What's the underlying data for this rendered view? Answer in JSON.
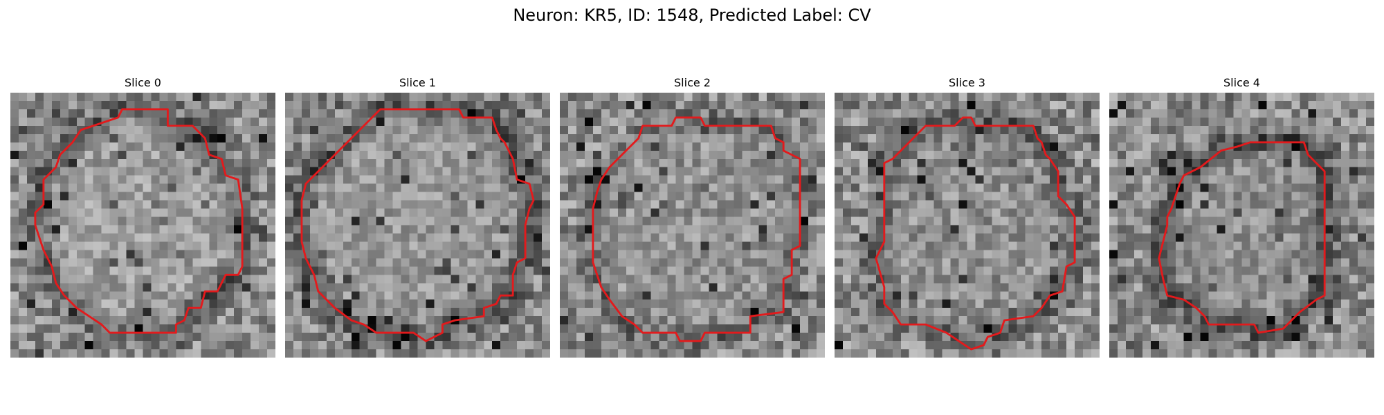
{
  "figure": {
    "title": "Neuron: KR5, ID: 1548, Predicted Label: CV"
  },
  "colors": {
    "contour": "#e31a1c",
    "colormap": "grayscale"
  },
  "panels": [
    {
      "title": "Slice 0",
      "grid_size": 32,
      "seed": 11,
      "cell_mean": 0.62,
      "rim_darkness": 0.22,
      "noise": 0.3,
      "contour": [
        [
          13.5,
          2.0
        ],
        [
          19.0,
          2.0
        ],
        [
          19.0,
          4.0
        ],
        [
          22.0,
          4.0
        ],
        [
          23.5,
          5.5
        ],
        [
          24.0,
          7.5
        ],
        [
          25.5,
          8.0
        ],
        [
          26.0,
          10.0
        ],
        [
          27.5,
          10.5
        ],
        [
          28.0,
          14.0
        ],
        [
          28.0,
          21.0
        ],
        [
          27.5,
          22.0
        ],
        [
          26.0,
          22.0
        ],
        [
          25.0,
          24.0
        ],
        [
          23.5,
          24.0
        ],
        [
          23.0,
          26.0
        ],
        [
          21.5,
          26.0
        ],
        [
          21.0,
          27.5
        ],
        [
          20.0,
          28.0
        ],
        [
          20.0,
          29.0
        ],
        [
          12.0,
          29.0
        ],
        [
          11.0,
          28.0
        ],
        [
          9.5,
          27.0
        ],
        [
          8.0,
          26.0
        ],
        [
          6.5,
          24.5
        ],
        [
          5.5,
          23.0
        ],
        [
          5.0,
          21.0
        ],
        [
          4.0,
          19.0
        ],
        [
          3.5,
          17.5
        ],
        [
          3.0,
          16.0
        ],
        [
          3.0,
          14.5
        ],
        [
          4.0,
          13.5
        ],
        [
          4.0,
          10.5
        ],
        [
          5.5,
          9.0
        ],
        [
          6.0,
          7.5
        ],
        [
          7.5,
          6.0
        ],
        [
          8.5,
          4.5
        ],
        [
          10.0,
          4.0
        ],
        [
          11.5,
          3.5
        ],
        [
          13.0,
          3.0
        ]
      ]
    },
    {
      "title": "Slice 1",
      "grid_size": 32,
      "seed": 23,
      "cell_mean": 0.6,
      "rim_darkness": 0.25,
      "noise": 0.28,
      "contour": [
        [
          11.5,
          2.0
        ],
        [
          21.0,
          2.0
        ],
        [
          21.5,
          3.0
        ],
        [
          25.0,
          3.0
        ],
        [
          25.5,
          4.5
        ],
        [
          26.0,
          5.5
        ],
        [
          26.5,
          6.0
        ],
        [
          27.0,
          7.0
        ],
        [
          27.5,
          8.0
        ],
        [
          28.0,
          10.5
        ],
        [
          29.5,
          11.0
        ],
        [
          30.0,
          13.0
        ],
        [
          29.5,
          14.0
        ],
        [
          29.0,
          16.0
        ],
        [
          29.0,
          20.0
        ],
        [
          28.0,
          20.5
        ],
        [
          27.5,
          22.0
        ],
        [
          27.5,
          24.5
        ],
        [
          26.0,
          24.5
        ],
        [
          25.5,
          25.5
        ],
        [
          24.0,
          26.0
        ],
        [
          24.0,
          27.0
        ],
        [
          20.5,
          27.5
        ],
        [
          19.0,
          28.0
        ],
        [
          19.0,
          29.0
        ],
        [
          17.0,
          30.0
        ],
        [
          15.5,
          29.0
        ],
        [
          11.0,
          29.0
        ],
        [
          9.5,
          28.0
        ],
        [
          8.0,
          27.5
        ],
        [
          6.0,
          26.0
        ],
        [
          4.0,
          24.0
        ],
        [
          3.5,
          22.0
        ],
        [
          2.5,
          20.0
        ],
        [
          2.0,
          18.0
        ],
        [
          2.0,
          13.0
        ],
        [
          2.5,
          11.0
        ],
        [
          3.5,
          10.0
        ],
        [
          6.0,
          7.5
        ],
        [
          9.0,
          4.5
        ],
        [
          10.5,
          3.0
        ]
      ]
    },
    {
      "title": "Slice 2",
      "grid_size": 32,
      "seed": 37,
      "cell_mean": 0.58,
      "rim_darkness": 0.15,
      "noise": 0.32,
      "contour": [
        [
          14.0,
          3.0
        ],
        [
          17.0,
          3.0
        ],
        [
          17.5,
          4.0
        ],
        [
          25.5,
          4.0
        ],
        [
          26.0,
          5.5
        ],
        [
          27.0,
          6.0
        ],
        [
          27.0,
          7.0
        ],
        [
          28.0,
          7.5
        ],
        [
          29.0,
          8.0
        ],
        [
          29.0,
          11.0
        ],
        [
          29.0,
          18.5
        ],
        [
          28.0,
          19.0
        ],
        [
          28.0,
          22.0
        ],
        [
          27.0,
          22.5
        ],
        [
          27.0,
          26.5
        ],
        [
          23.0,
          27.0
        ],
        [
          23.0,
          29.0
        ],
        [
          17.5,
          29.0
        ],
        [
          17.0,
          30.0
        ],
        [
          14.5,
          30.0
        ],
        [
          14.0,
          29.0
        ],
        [
          10.0,
          29.0
        ],
        [
          9.0,
          28.0
        ],
        [
          7.5,
          27.0
        ],
        [
          6.0,
          25.0
        ],
        [
          5.0,
          23.5
        ],
        [
          4.0,
          20.5
        ],
        [
          4.0,
          14.0
        ],
        [
          4.5,
          12.0
        ],
        [
          5.0,
          10.5
        ],
        [
          6.0,
          9.0
        ],
        [
          7.0,
          8.0
        ],
        [
          8.0,
          7.0
        ],
        [
          9.5,
          5.5
        ],
        [
          10.0,
          4.0
        ],
        [
          13.5,
          4.0
        ]
      ]
    },
    {
      "title": "Slice 3",
      "grid_size": 32,
      "seed": 51,
      "cell_mean": 0.57,
      "rim_darkness": 0.2,
      "noise": 0.33,
      "contour": [
        [
          15.5,
          3.0
        ],
        [
          16.5,
          3.0
        ],
        [
          17.0,
          4.0
        ],
        [
          24.0,
          4.0
        ],
        [
          24.5,
          5.5
        ],
        [
          25.0,
          6.0
        ],
        [
          25.5,
          7.5
        ],
        [
          26.0,
          8.0
        ],
        [
          27.0,
          9.5
        ],
        [
          27.0,
          12.5
        ],
        [
          28.0,
          13.5
        ],
        [
          29.0,
          15.0
        ],
        [
          29.0,
          20.5
        ],
        [
          28.0,
          21.0
        ],
        [
          27.5,
          24.0
        ],
        [
          26.0,
          24.5
        ],
        [
          25.0,
          26.0
        ],
        [
          24.0,
          27.0
        ],
        [
          20.5,
          27.5
        ],
        [
          20.0,
          29.0
        ],
        [
          18.5,
          29.5
        ],
        [
          18.0,
          30.5
        ],
        [
          16.5,
          31.0
        ],
        [
          15.0,
          30.0
        ],
        [
          13.5,
          29.0
        ],
        [
          11.0,
          28.0
        ],
        [
          8.0,
          28.0
        ],
        [
          7.0,
          26.5
        ],
        [
          6.0,
          25.5
        ],
        [
          6.0,
          23.5
        ],
        [
          5.0,
          20.0
        ],
        [
          6.0,
          18.0
        ],
        [
          6.0,
          8.5
        ],
        [
          7.0,
          8.0
        ],
        [
          10.0,
          5.0
        ],
        [
          11.0,
          4.0
        ],
        [
          14.5,
          4.0
        ]
      ]
    },
    {
      "title": "Slice 4",
      "grid_size": 32,
      "seed": 67,
      "cell_mean": 0.56,
      "rim_darkness": 0.3,
      "noise": 0.3,
      "contour": [
        [
          17.5,
          6.0
        ],
        [
          23.5,
          6.0
        ],
        [
          24.0,
          7.5
        ],
        [
          25.0,
          8.5
        ],
        [
          26.0,
          9.5
        ],
        [
          26.0,
          24.5
        ],
        [
          25.0,
          25.0
        ],
        [
          23.0,
          26.5
        ],
        [
          22.0,
          27.5
        ],
        [
          21.0,
          28.5
        ],
        [
          18.0,
          29.0
        ],
        [
          17.5,
          28.0
        ],
        [
          12.0,
          28.0
        ],
        [
          11.5,
          27.0
        ],
        [
          10.5,
          26.0
        ],
        [
          9.0,
          25.0
        ],
        [
          7.0,
          24.5
        ],
        [
          6.5,
          22.5
        ],
        [
          6.0,
          20.0
        ],
        [
          6.5,
          18.0
        ],
        [
          7.0,
          16.0
        ],
        [
          7.0,
          15.0
        ],
        [
          7.5,
          14.0
        ],
        [
          8.0,
          12.5
        ],
        [
          8.5,
          11.0
        ],
        [
          9.0,
          10.0
        ],
        [
          11.0,
          9.0
        ],
        [
          13.5,
          7.0
        ],
        [
          15.5,
          6.5
        ],
        [
          17.0,
          6.0
        ]
      ]
    }
  ]
}
